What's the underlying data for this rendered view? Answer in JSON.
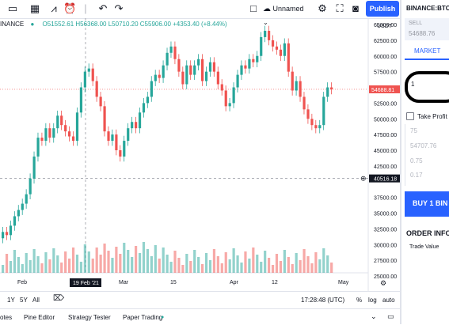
{
  "topbar": {
    "icons": [
      "calendar-alt-icon",
      "grid-icon",
      "indicators-icon",
      "alert-clock-icon",
      "undo-icon",
      "redo-icon",
      "layout-square-icon",
      "cloud-icon",
      "settings-icon",
      "fullscreen-icon",
      "camera-icon"
    ],
    "layout_name": "Unnamed",
    "publish_label": "Publish"
  },
  "chart": {
    "symbol": "INANCE",
    "ohlc_text": "O51552.61 H56368.00 L50710.20 C55906.00 +4353.40 (+8.44%)",
    "price_axis_labels": [
      "65000.00",
      "62500.00",
      "60000.00",
      "57500.00",
      "55000.00",
      "52500.00",
      "50000.00",
      "47500.00",
      "45000.00",
      "42500.00",
      "37500.00",
      "35000.00",
      "32500.00",
      "30000.00",
      "27500.00",
      "25000.00"
    ],
    "currency": "USDT",
    "current_price_label": "54688.81",
    "crosshair_price_label": "40516.18",
    "date_labels": [
      "Feb",
      "Mar",
      "15",
      "Apr",
      "12",
      "May"
    ],
    "crosshair_date_label": "19 Feb '21",
    "colors": {
      "up": "#26a69a",
      "down": "#ef5350",
      "accent": "#2962ff"
    }
  },
  "bottombar": {
    "ranges": [
      "1Y",
      "5Y",
      "All"
    ],
    "time": "17:28:48 (UTC)",
    "percent_label": "%",
    "log_label": "log",
    "auto_label": "auto"
  },
  "tabs": [
    "otes",
    "Pine Editor",
    "Strategy Tester",
    "Paper Trading"
  ],
  "panel": {
    "symbol": "BINANCE:BTCU",
    "sell_label": "SELL",
    "sell_price": "54688.76",
    "market_tab": "MARKET",
    "quantity": "1",
    "take_profit_label": "Take Profit",
    "tp_fields": [
      "75",
      "54707.76",
      "0.75",
      "0.17"
    ],
    "buy_label": "BUY 1 BIN",
    "order_info_label": "ORDER INFO",
    "trade_value_label": "Trade Value"
  }
}
